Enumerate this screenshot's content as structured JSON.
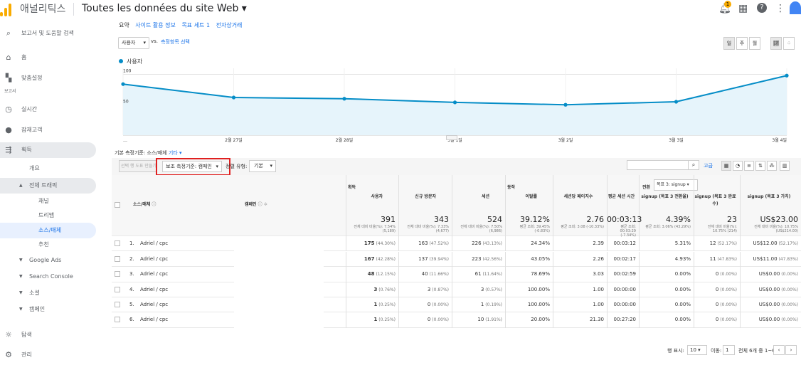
{
  "header": {
    "brand": "애널리틱스",
    "property": "Toutes les données du site Web",
    "notif_count": "1"
  },
  "sidebar": {
    "search": "보고서 및 도움말 검색",
    "items": [
      {
        "label": "홈"
      },
      {
        "label": "맞춤설정"
      },
      {
        "label": "보고서"
      },
      {
        "label": "실시간"
      },
      {
        "label": "잠재고객"
      },
      {
        "label": "획득"
      },
      {
        "label": "개요"
      },
      {
        "label": "전체 트래픽"
      },
      {
        "label": "채널"
      },
      {
        "label": "트리맵"
      },
      {
        "label": "소스/매체"
      },
      {
        "label": "추천"
      },
      {
        "label": "Google Ads"
      },
      {
        "label": "Search Console"
      },
      {
        "label": "소셜"
      },
      {
        "label": "캠페인"
      },
      {
        "label": "탐색"
      },
      {
        "label": "관리"
      }
    ]
  },
  "explorer_tabs": [
    "요약",
    "사이트 활용 정보",
    "목표 세트 1",
    "전자상거래"
  ],
  "controls": {
    "metric": "사용자",
    "vs": "vs.",
    "select_metric": "측정항목 선택",
    "day": "일",
    "week": "주",
    "month": "월"
  },
  "chart_data": {
    "type": "area",
    "series": [
      {
        "name": "사용자",
        "values": [
          84,
          62,
          60,
          54,
          50,
          55,
          98
        ]
      }
    ],
    "x": [
      "…",
      "2월 27일",
      "2월 28일",
      "3월 1일",
      "3월 2일",
      "3월 3일",
      "3월 4일"
    ],
    "ylim": [
      0,
      110
    ],
    "yticks": [
      "100",
      "50"
    ],
    "color": "#058dc7"
  },
  "primary_dim": {
    "label": "기본 측정기준:",
    "current": "소스/매체",
    "other": "기타"
  },
  "toolbar": {
    "plot_rows": "선택 행 도표 만들기",
    "secondary_dim": "보조 측정기준: 캠페인",
    "sort_type_label": "정렬 유형:",
    "sort_type": "기본",
    "advanced": "고급"
  },
  "table": {
    "col_source": "소스/매체",
    "col_campaign": "캠페인",
    "groups": {
      "acquisition": "획득",
      "behavior": "동작",
      "conversion": "전환",
      "goal_sel": "목표 3: signup"
    },
    "headers": [
      "사용자",
      "신규 방문자",
      "세션",
      "이탈률",
      "세션당 페이지수",
      "평균 세션 시간",
      "signup (목표 3 전환율)",
      "signup (목표 3 완료 수)",
      "signup (목표 3 가치)"
    ],
    "totals": {
      "main": [
        "391",
        "343",
        "524",
        "39.12%",
        "2.76",
        "00:03:13",
        "4.39%",
        "23",
        "US$23.00"
      ],
      "sub": [
        "전체 대비 비율(%): 7.54% (5,189)",
        "전체 대비 비율(%): 7.33% (4,677)",
        "전체 대비 비율(%): 7.50% (6,986)",
        "평균 조회: 39.45% (-0.83%)",
        "평균 조회: 3.08 (-10.33%)",
        "평균 조회: 00:03:29 (-7.34%)",
        "평균 조회: 3.06% (43.29%)",
        "전체 대비 비율(%): 10.75% (214)",
        "전체 대비 비율(%): 10.75% (US$214.00)"
      ]
    },
    "rows": [
      {
        "n": "1.",
        "src": "Adriel / cpc",
        "v": [
          [
            "175",
            "(44.30%)"
          ],
          [
            "163",
            "(47.52%)"
          ],
          [
            "226",
            "(43.13%)"
          ],
          [
            "24.34%",
            ""
          ],
          [
            "2.39",
            ""
          ],
          [
            "00:03:12",
            ""
          ],
          [
            "5.31%",
            ""
          ],
          [
            "12",
            "(52.17%)"
          ],
          [
            "US$12.00",
            "(52.17%)"
          ]
        ]
      },
      {
        "n": "2.",
        "src": "Adriel / cpc",
        "v": [
          [
            "167",
            "(42.28%)"
          ],
          [
            "137",
            "(39.94%)"
          ],
          [
            "223",
            "(42.56%)"
          ],
          [
            "43.05%",
            ""
          ],
          [
            "2.26",
            ""
          ],
          [
            "00:02:17",
            ""
          ],
          [
            "4.93%",
            ""
          ],
          [
            "11",
            "(47.83%)"
          ],
          [
            "US$11.00",
            "(47.83%)"
          ]
        ]
      },
      {
        "n": "3.",
        "src": "Adriel / cpc",
        "v": [
          [
            "48",
            "(12.15%)"
          ],
          [
            "40",
            "(11.66%)"
          ],
          [
            "61",
            "(11.64%)"
          ],
          [
            "78.69%",
            ""
          ],
          [
            "3.03",
            ""
          ],
          [
            "00:02:59",
            ""
          ],
          [
            "0.00%",
            ""
          ],
          [
            "0",
            "(0.00%)"
          ],
          [
            "US$0.00",
            "(0.00%)"
          ]
        ]
      },
      {
        "n": "4.",
        "src": "Adriel / cpc",
        "v": [
          [
            "3",
            "(0.76%)"
          ],
          [
            "3",
            "(0.87%)"
          ],
          [
            "3",
            "(0.57%)"
          ],
          [
            "100.00%",
            ""
          ],
          [
            "1.00",
            ""
          ],
          [
            "00:00:00",
            ""
          ],
          [
            "0.00%",
            ""
          ],
          [
            "0",
            "(0.00%)"
          ],
          [
            "US$0.00",
            "(0.00%)"
          ]
        ]
      },
      {
        "n": "5.",
        "src": "Adriel / cpc",
        "v": [
          [
            "1",
            "(0.25%)"
          ],
          [
            "0",
            "(0.00%)"
          ],
          [
            "1",
            "(0.19%)"
          ],
          [
            "100.00%",
            ""
          ],
          [
            "1.00",
            ""
          ],
          [
            "00:00:00",
            ""
          ],
          [
            "0.00%",
            ""
          ],
          [
            "0",
            "(0.00%)"
          ],
          [
            "US$0.00",
            "(0.00%)"
          ]
        ]
      },
      {
        "n": "6.",
        "src": "Adriel / cpc",
        "v": [
          [
            "1",
            "(0.25%)"
          ],
          [
            "0",
            "(0.00%)"
          ],
          [
            "10",
            "(1.91%)"
          ],
          [
            "20.00%",
            ""
          ],
          [
            "21.30",
            ""
          ],
          [
            "00:27:20",
            ""
          ],
          [
            "0.00%",
            ""
          ],
          [
            "0",
            "(0.00%)"
          ],
          [
            "US$0.00",
            "(0.00%)"
          ]
        ]
      }
    ]
  },
  "footer": {
    "rows_label": "행 표시:",
    "rows": "10",
    "goto": "이동:",
    "page": "1",
    "range": "전체 6개 중 1~6"
  }
}
